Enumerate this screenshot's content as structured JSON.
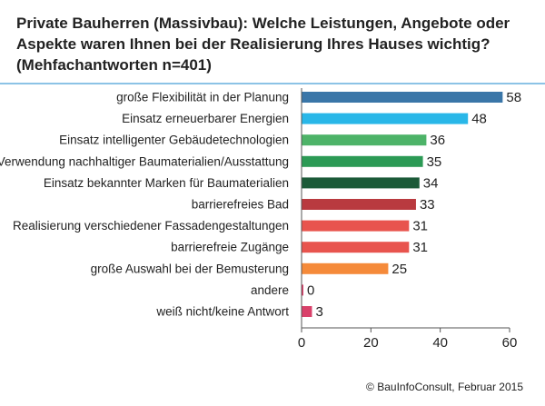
{
  "title_lines": [
    "Private Bauherren (Massivbau): Welche Leistungen, Angebote oder",
    "Aspekte waren Ihnen bei der Realisierung Ihres Hauses wichtig?",
    "(Mehfachantworten n=401)"
  ],
  "footer": "© BauInfoConsult, Februar 2015",
  "chart_data": {
    "type": "bar",
    "orientation": "horizontal",
    "categories": [
      "große Flexibilität in der Planung",
      "Einsatz erneuerbarer Energien",
      "Einsatz intelligenter Gebäudetechnologien",
      "Verwendung nachhaltiger Baumaterialien/Ausstattung",
      "Einsatz bekannter Marken für Baumaterialien",
      "barrierefreies Bad",
      "Realisierung verschiedener Fassadengestaltungen",
      "barrierefreie Zugänge",
      "große Auswahl bei der Bemusterung",
      "andere",
      "weiß nicht/keine Antwort"
    ],
    "values": [
      58,
      48,
      36,
      35,
      34,
      33,
      31,
      31,
      25,
      0,
      3
    ],
    "colors": [
      "#3a76a8",
      "#29b7e8",
      "#4db368",
      "#2c9a55",
      "#1b5a38",
      "#b93a3f",
      "#e8544e",
      "#e8544e",
      "#f58a3a",
      "#d9416a",
      "#d9416a"
    ],
    "xlim": [
      0,
      60
    ],
    "xticks": [
      0,
      20,
      40,
      60
    ],
    "grid": false,
    "legend": "none"
  }
}
